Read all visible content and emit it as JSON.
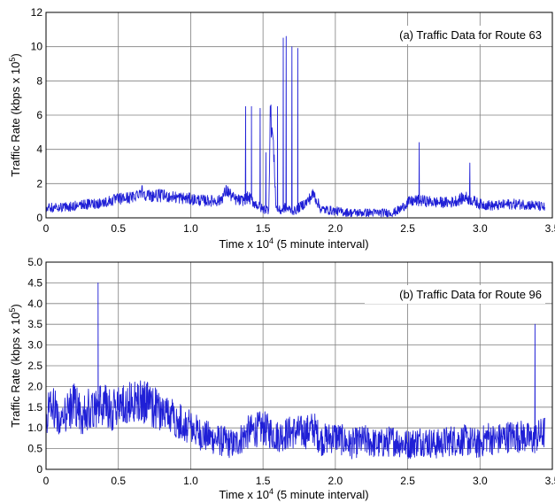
{
  "chart_data": [
    {
      "type": "line",
      "title": "(a) Traffic Data for Route 63",
      "xlabel": "Time x 10^4 (5 minute interval)",
      "ylabel": "Traffic Rate (kbps x 10^5)",
      "xlim": [
        0,
        3.5
      ],
      "ylim": [
        0,
        12
      ],
      "xticks": [
        "0",
        "0.5",
        "1.0",
        "1.5",
        "2.0",
        "2.5",
        "3.0",
        "3.5"
      ],
      "yticks": [
        "0",
        "2",
        "4",
        "6",
        "8",
        "10",
        "12"
      ],
      "grid": true,
      "legend_position": "top-right",
      "series_color": "#1f1fd6",
      "series": [
        {
          "name": "(a) Traffic Data for Route 63",
          "x": [
            0,
            0.1,
            0.2,
            0.3,
            0.4,
            0.5,
            0.6,
            0.66,
            0.7,
            0.8,
            0.9,
            1.0,
            1.1,
            1.2,
            1.25,
            1.3,
            1.35,
            1.38,
            1.4,
            1.42,
            1.45,
            1.48,
            1.5,
            1.52,
            1.54,
            1.55,
            1.57,
            1.59,
            1.6,
            1.62,
            1.64,
            1.65,
            1.66,
            1.68,
            1.7,
            1.72,
            1.74,
            1.75,
            1.78,
            1.8,
            1.85,
            1.9,
            2.0,
            2.1,
            2.2,
            2.3,
            2.4,
            2.45,
            2.5,
            2.55,
            2.58,
            2.6,
            2.7,
            2.8,
            2.9,
            2.93,
            2.95,
            3.0,
            3.1,
            3.2,
            3.3,
            3.4,
            3.45
          ],
          "values": [
            0.6,
            0.6,
            0.7,
            0.8,
            0.9,
            1.1,
            1.2,
            1.6,
            1.3,
            1.3,
            1.2,
            1.1,
            1.0,
            1.0,
            1.6,
            1.1,
            1.0,
            6.5,
            1.2,
            6.5,
            0.8,
            6.4,
            0.5,
            3.8,
            0.5,
            6.2,
            4.5,
            0.6,
            6.5,
            0.4,
            10.5,
            0.6,
            10.6,
            0.5,
            10.0,
            0.4,
            9.9,
            0.6,
            0.8,
            0.9,
            1.4,
            0.5,
            0.4,
            0.3,
            0.3,
            0.3,
            0.3,
            0.5,
            0.9,
            1.0,
            4.4,
            1.0,
            0.9,
            0.9,
            1.2,
            3.2,
            1.0,
            0.8,
            0.7,
            0.8,
            0.8,
            0.7,
            0.6
          ]
        }
      ]
    },
    {
      "type": "line",
      "title": "(b) Traffic Data for Route 96",
      "xlabel": "Time x 10^4 (5 minute interval)",
      "ylabel": "Traffic Rate (kbps x 10^5)",
      "xlim": [
        0,
        3.5
      ],
      "ylim": [
        0,
        5
      ],
      "xticks": [
        "0",
        "0.5",
        "1.0",
        "1.5",
        "2.0",
        "2.5",
        "3.0",
        "3.5"
      ],
      "yticks": [
        "0",
        "0.5",
        "1.0",
        "1.5",
        "2.0",
        "2.5",
        "3.0",
        "3.5",
        "4.0",
        "4.5",
        "5.0"
      ],
      "grid": true,
      "legend_position": "top-right",
      "series_color": "#1f1fd6",
      "series": [
        {
          "name": "(b) Traffic Data for Route 96",
          "x": [
            0,
            0.05,
            0.1,
            0.15,
            0.2,
            0.25,
            0.3,
            0.35,
            0.36,
            0.4,
            0.45,
            0.5,
            0.55,
            0.6,
            0.7,
            0.8,
            0.9,
            1.0,
            1.05,
            1.1,
            1.2,
            1.3,
            1.4,
            1.5,
            1.6,
            1.7,
            1.8,
            1.85,
            1.9,
            2.0,
            2.1,
            2.2,
            2.3,
            2.4,
            2.5,
            2.6,
            2.7,
            2.8,
            2.9,
            3.0,
            3.05,
            3.1,
            3.2,
            3.3,
            3.36,
            3.38,
            3.4,
            3.45
          ],
          "values": [
            1.3,
            1.5,
            1.2,
            1.4,
            1.6,
            1.3,
            1.5,
            1.5,
            4.5,
            1.6,
            1.4,
            1.6,
            1.5,
            1.7,
            1.6,
            1.4,
            1.2,
            1.0,
            0.9,
            0.8,
            0.7,
            0.6,
            0.9,
            1.0,
            0.8,
            0.9,
            0.9,
            1.0,
            0.7,
            0.8,
            0.6,
            0.7,
            0.6,
            0.7,
            0.6,
            0.7,
            0.6,
            0.7,
            0.7,
            0.6,
            0.8,
            0.7,
            0.8,
            0.8,
            0.7,
            3.5,
            0.8,
            0.9
          ]
        }
      ]
    }
  ]
}
